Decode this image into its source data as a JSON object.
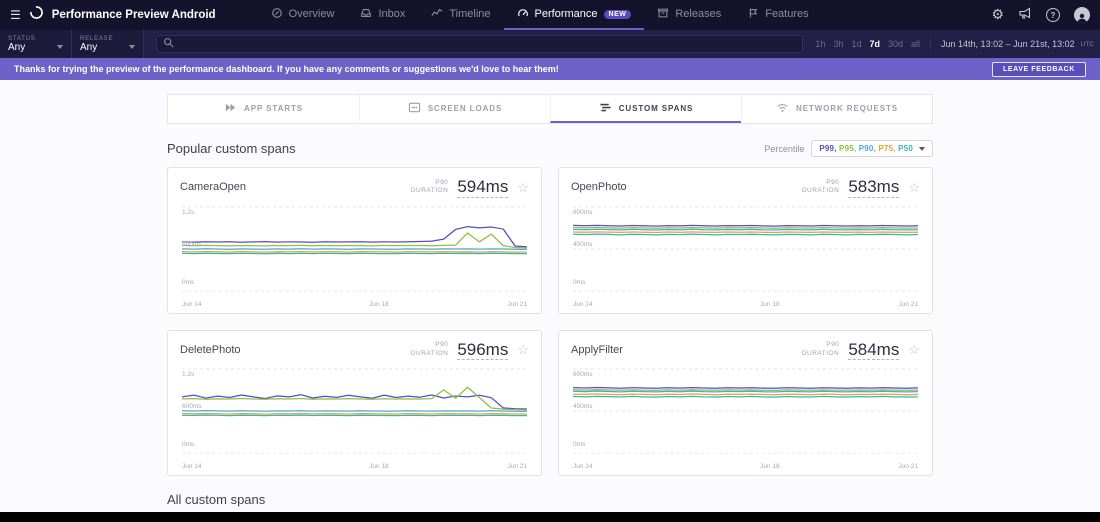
{
  "nav": {
    "app_title": "Performance Preview Android",
    "items": [
      {
        "label": "Overview",
        "active": false
      },
      {
        "label": "Inbox",
        "active": false
      },
      {
        "label": "Timeline",
        "active": false
      },
      {
        "label": "Performance",
        "badge": "NEW",
        "active": true
      },
      {
        "label": "Releases",
        "active": false
      },
      {
        "label": "Features",
        "active": false
      }
    ]
  },
  "filters": {
    "status": {
      "label": "STATUS",
      "value": "Any"
    },
    "release": {
      "label": "RELEASE",
      "value": "Any"
    },
    "search": {
      "value": "",
      "placeholder": ""
    },
    "time_ranges": [
      "1h",
      "3h",
      "1d",
      "7d",
      "30d",
      "all"
    ],
    "active_range": "7d",
    "date_range": "Jun 14th, 13:02 – Jun 21st, 13:02",
    "timezone": "UTC"
  },
  "banner": {
    "message": "Thanks for trying the preview of the performance dashboard. If you have any comments or suggestions we'd love to hear them!",
    "button_label": "LEAVE FEEDBACK"
  },
  "tabs": [
    {
      "label": "APP STARTS",
      "active": false
    },
    {
      "label": "SCREEN LOADS",
      "active": false
    },
    {
      "label": "CUSTOM SPANS",
      "active": true
    },
    {
      "label": "NETWORK REQUESTS",
      "active": false
    }
  ],
  "section": {
    "title": "Popular custom spans",
    "percentile_label": "Percentile",
    "percentiles": [
      {
        "label": "P99",
        "color": "#5A4CC4"
      },
      {
        "label": "P95",
        "color": "#8FBF45"
      },
      {
        "label": "P90",
        "color": "#52A6D9"
      },
      {
        "label": "P75",
        "color": "#E0A63C"
      },
      {
        "label": "P50",
        "color": "#35B8B2"
      }
    ]
  },
  "accent_color": "#6C5FC7",
  "footer_title": "All custom spans",
  "cards": [
    {
      "title": "CameraOpen",
      "percentile": "P90",
      "duration_label": "DURATION",
      "value": "594ms",
      "chart": {
        "type": "line",
        "ymax": 1200,
        "yticks": [
          {
            "label": "1.2s",
            "value": 1200
          },
          {
            "label": "600ms",
            "value": 600
          },
          {
            "label": "0ms",
            "value": 0
          }
        ],
        "xticks": [
          "Jun 14",
          "Jun 18",
          "Jun 21"
        ],
        "series": [
          {
            "name": "P99",
            "values": [
              702,
              698,
              704,
              699,
              703,
              697,
              701,
              705,
              698,
              702,
              700,
              696,
              703,
              699,
              701,
              704,
              698,
              702,
              700,
              703,
              706,
              712,
              740,
              880,
              918,
              902,
              912,
              884,
              642,
              630
            ]
          },
          {
            "name": "P95",
            "values": [
              650,
              646,
              652,
              648,
              645,
              651,
              647,
              644,
              650,
              648,
              652,
              646,
              649,
              647,
              651,
              648,
              645,
              650,
              648,
              651,
              649,
              647,
              652,
              656,
              828,
              702,
              812,
              648,
              622,
              616
            ]
          },
          {
            "name": "P90",
            "values": [
              602,
              598,
              603,
              600,
              597,
              602,
              599,
              596,
              601,
              599,
              603,
              598,
              601,
              600,
              597,
              602,
              600,
              599,
              597,
              602,
              600,
              598,
              602,
              600,
              601,
              598,
              602,
              600,
              596,
              594
            ]
          },
          {
            "name": "P75",
            "values": [
              562,
              558,
              563,
              560,
              557,
              562,
              559,
              556,
              561,
              559,
              562,
              558,
              561,
              560,
              557,
              562,
              560,
              559,
              557,
              561,
              560,
              558,
              561,
              559,
              560,
              557,
              561,
              559,
              557,
              556
            ]
          },
          {
            "name": "P50",
            "values": [
              538,
              535,
              539,
              536,
              534,
              538,
              536,
              533,
              537,
              535,
              539,
              535,
              538,
              536,
              534,
              538,
              536,
              535,
              534,
              538,
              536,
              534,
              538,
              536,
              537,
              534,
              538,
              536,
              534,
              533
            ]
          }
        ]
      }
    },
    {
      "title": "OpenPhoto",
      "percentile": "P90",
      "duration_label": "DURATION",
      "value": "583ms",
      "chart": {
        "type": "line",
        "ymax": 800,
        "yticks": [
          {
            "label": "800ms",
            "value": 800
          },
          {
            "label": "400ms",
            "value": 400
          },
          {
            "label": "0ms",
            "value": 0
          }
        ],
        "xticks": [
          "Jun 14",
          "Jun 18",
          "Jun 21"
        ],
        "series": [
          {
            "name": "P99",
            "values": [
              624,
              620,
              625,
              621,
              618,
              623,
              620,
              617,
              622,
              619,
              624,
              620,
              618,
              622,
              620,
              623,
              619,
              617,
              622,
              620,
              618,
              623,
              620,
              618,
              621,
              619,
              623,
              620,
              618,
              621
            ]
          },
          {
            "name": "P95",
            "values": [
              604,
              600,
              605,
              601,
              598,
              603,
              600,
              597,
              602,
              599,
              604,
              600,
              598,
              602,
              600,
              603,
              599,
              597,
              602,
              600,
              598,
              603,
              600,
              598,
              601,
              599,
              603,
              600,
              598,
              600
            ]
          },
          {
            "name": "P90",
            "values": [
              586,
              583,
              587,
              584,
              581,
              586,
              583,
              580,
              585,
              582,
              587,
              583,
              581,
              585,
              583,
              586,
              582,
              580,
              585,
              583,
              581,
              586,
              583,
              581,
              584,
              582,
              586,
              583,
              581,
              583
            ]
          },
          {
            "name": "P75",
            "values": [
              562,
              559,
              563,
              560,
              557,
              562,
              559,
              556,
              561,
              558,
              563,
              559,
              557,
              561,
              559,
              562,
              558,
              556,
              561,
              559,
              557,
              562,
              559,
              557,
              560,
              558,
              562,
              559,
              557,
              559
            ]
          },
          {
            "name": "P50",
            "values": [
              540,
              537,
              541,
              538,
              535,
              540,
              537,
              534,
              539,
              536,
              541,
              537,
              535,
              539,
              537,
              540,
              536,
              534,
              539,
              537,
              535,
              540,
              537,
              535,
              538,
              536,
              540,
              537,
              535,
              537
            ]
          }
        ]
      }
    },
    {
      "title": "DeletePhoto",
      "percentile": "P90",
      "duration_label": "DURATION",
      "value": "596ms",
      "chart": {
        "type": "line",
        "ymax": 1200,
        "yticks": [
          {
            "label": "1.2s",
            "value": 1200
          },
          {
            "label": "600ms",
            "value": 600
          },
          {
            "label": "0ms",
            "value": 0
          }
        ],
        "xticks": [
          "Jun 14",
          "Jun 18",
          "Jun 21"
        ],
        "series": [
          {
            "name": "P99",
            "values": [
              800,
              826,
              784,
              812,
              792,
              828,
              800,
              778,
              816,
              800,
              832,
              786,
              810,
              794,
              824,
              800,
              782,
              826,
              792,
              812,
              796,
              828,
              786,
              814,
              800,
              824,
              790,
              644,
              632,
              628
            ]
          },
          {
            "name": "P95",
            "values": [
              772,
              776,
              768,
              773,
              770,
              777,
              770,
              766,
              774,
              770,
              778,
              768,
              772,
              770,
              776,
              770,
              768,
              774,
              770,
              773,
              770,
              776,
              902,
              782,
              938,
              792,
              642,
              626,
              620,
              616
            ]
          },
          {
            "name": "P90",
            "values": [
              604,
              600,
              605,
              601,
              598,
              603,
              600,
              597,
              602,
              600,
              604,
              599,
              602,
              600,
              598,
              603,
              600,
              599,
              598,
              603,
              600,
              598,
              602,
              600,
              601,
              599,
              603,
              600,
              597,
              596
            ]
          },
          {
            "name": "P75",
            "values": [
              564,
              560,
              565,
              561,
              558,
              563,
              560,
              557,
              562,
              560,
              564,
              559,
              562,
              560,
              558,
              563,
              560,
              559,
              558,
              562,
              560,
              558,
              562,
              560,
              561,
              558,
              562,
              560,
              558,
              557
            ]
          },
          {
            "name": "P50",
            "values": [
              540,
              537,
              541,
              538,
              535,
              540,
              537,
              534,
              539,
              537,
              541,
              536,
              539,
              537,
              535,
              540,
              537,
              536,
              535,
              539,
              537,
              535,
              539,
              537,
              538,
              535,
              539,
              537,
              535,
              534
            ]
          }
        ]
      }
    },
    {
      "title": "ApplyFilter",
      "percentile": "P90",
      "duration_label": "DURATION",
      "value": "584ms",
      "chart": {
        "type": "line",
        "ymax": 800,
        "yticks": [
          {
            "label": "800ms",
            "value": 800
          },
          {
            "label": "400ms",
            "value": 400
          },
          {
            "label": "0ms",
            "value": 0
          }
        ],
        "xticks": [
          "Jun 14",
          "Jun 18",
          "Jun 21"
        ],
        "series": [
          {
            "name": "P99",
            "values": [
              622,
              618,
              623,
              619,
              616,
              621,
              618,
              615,
              620,
              617,
              622,
              618,
              616,
              620,
              618,
              621,
              617,
              615,
              620,
              618,
              616,
              621,
              618,
              616,
              619,
              617,
              621,
              618,
              616,
              619
            ]
          },
          {
            "name": "P95",
            "values": [
              602,
              598,
              603,
              599,
              596,
              601,
              598,
              595,
              600,
              597,
              602,
              598,
              596,
              600,
              598,
              601,
              597,
              595,
              600,
              598,
              596,
              601,
              598,
              596,
              599,
              597,
              601,
              598,
              596,
              598
            ]
          },
          {
            "name": "P90",
            "values": [
              587,
              584,
              588,
              585,
              582,
              587,
              584,
              581,
              586,
              583,
              588,
              584,
              582,
              586,
              584,
              587,
              583,
              581,
              586,
              584,
              582,
              587,
              584,
              582,
              585,
              583,
              587,
              584,
              582,
              584
            ]
          },
          {
            "name": "P75",
            "values": [
              560,
              557,
              561,
              558,
              555,
              560,
              557,
              554,
              559,
              556,
              561,
              557,
              555,
              559,
              557,
              560,
              556,
              554,
              559,
              557,
              555,
              560,
              557,
              555,
              558,
              556,
              560,
              557,
              555,
              557
            ]
          },
          {
            "name": "P50",
            "values": [
              538,
              535,
              539,
              536,
              533,
              538,
              535,
              532,
              537,
              534,
              539,
              535,
              533,
              537,
              535,
              538,
              534,
              532,
              537,
              535,
              533,
              538,
              535,
              533,
              536,
              534,
              538,
              535,
              533,
              535
            ]
          }
        ]
      }
    }
  ]
}
